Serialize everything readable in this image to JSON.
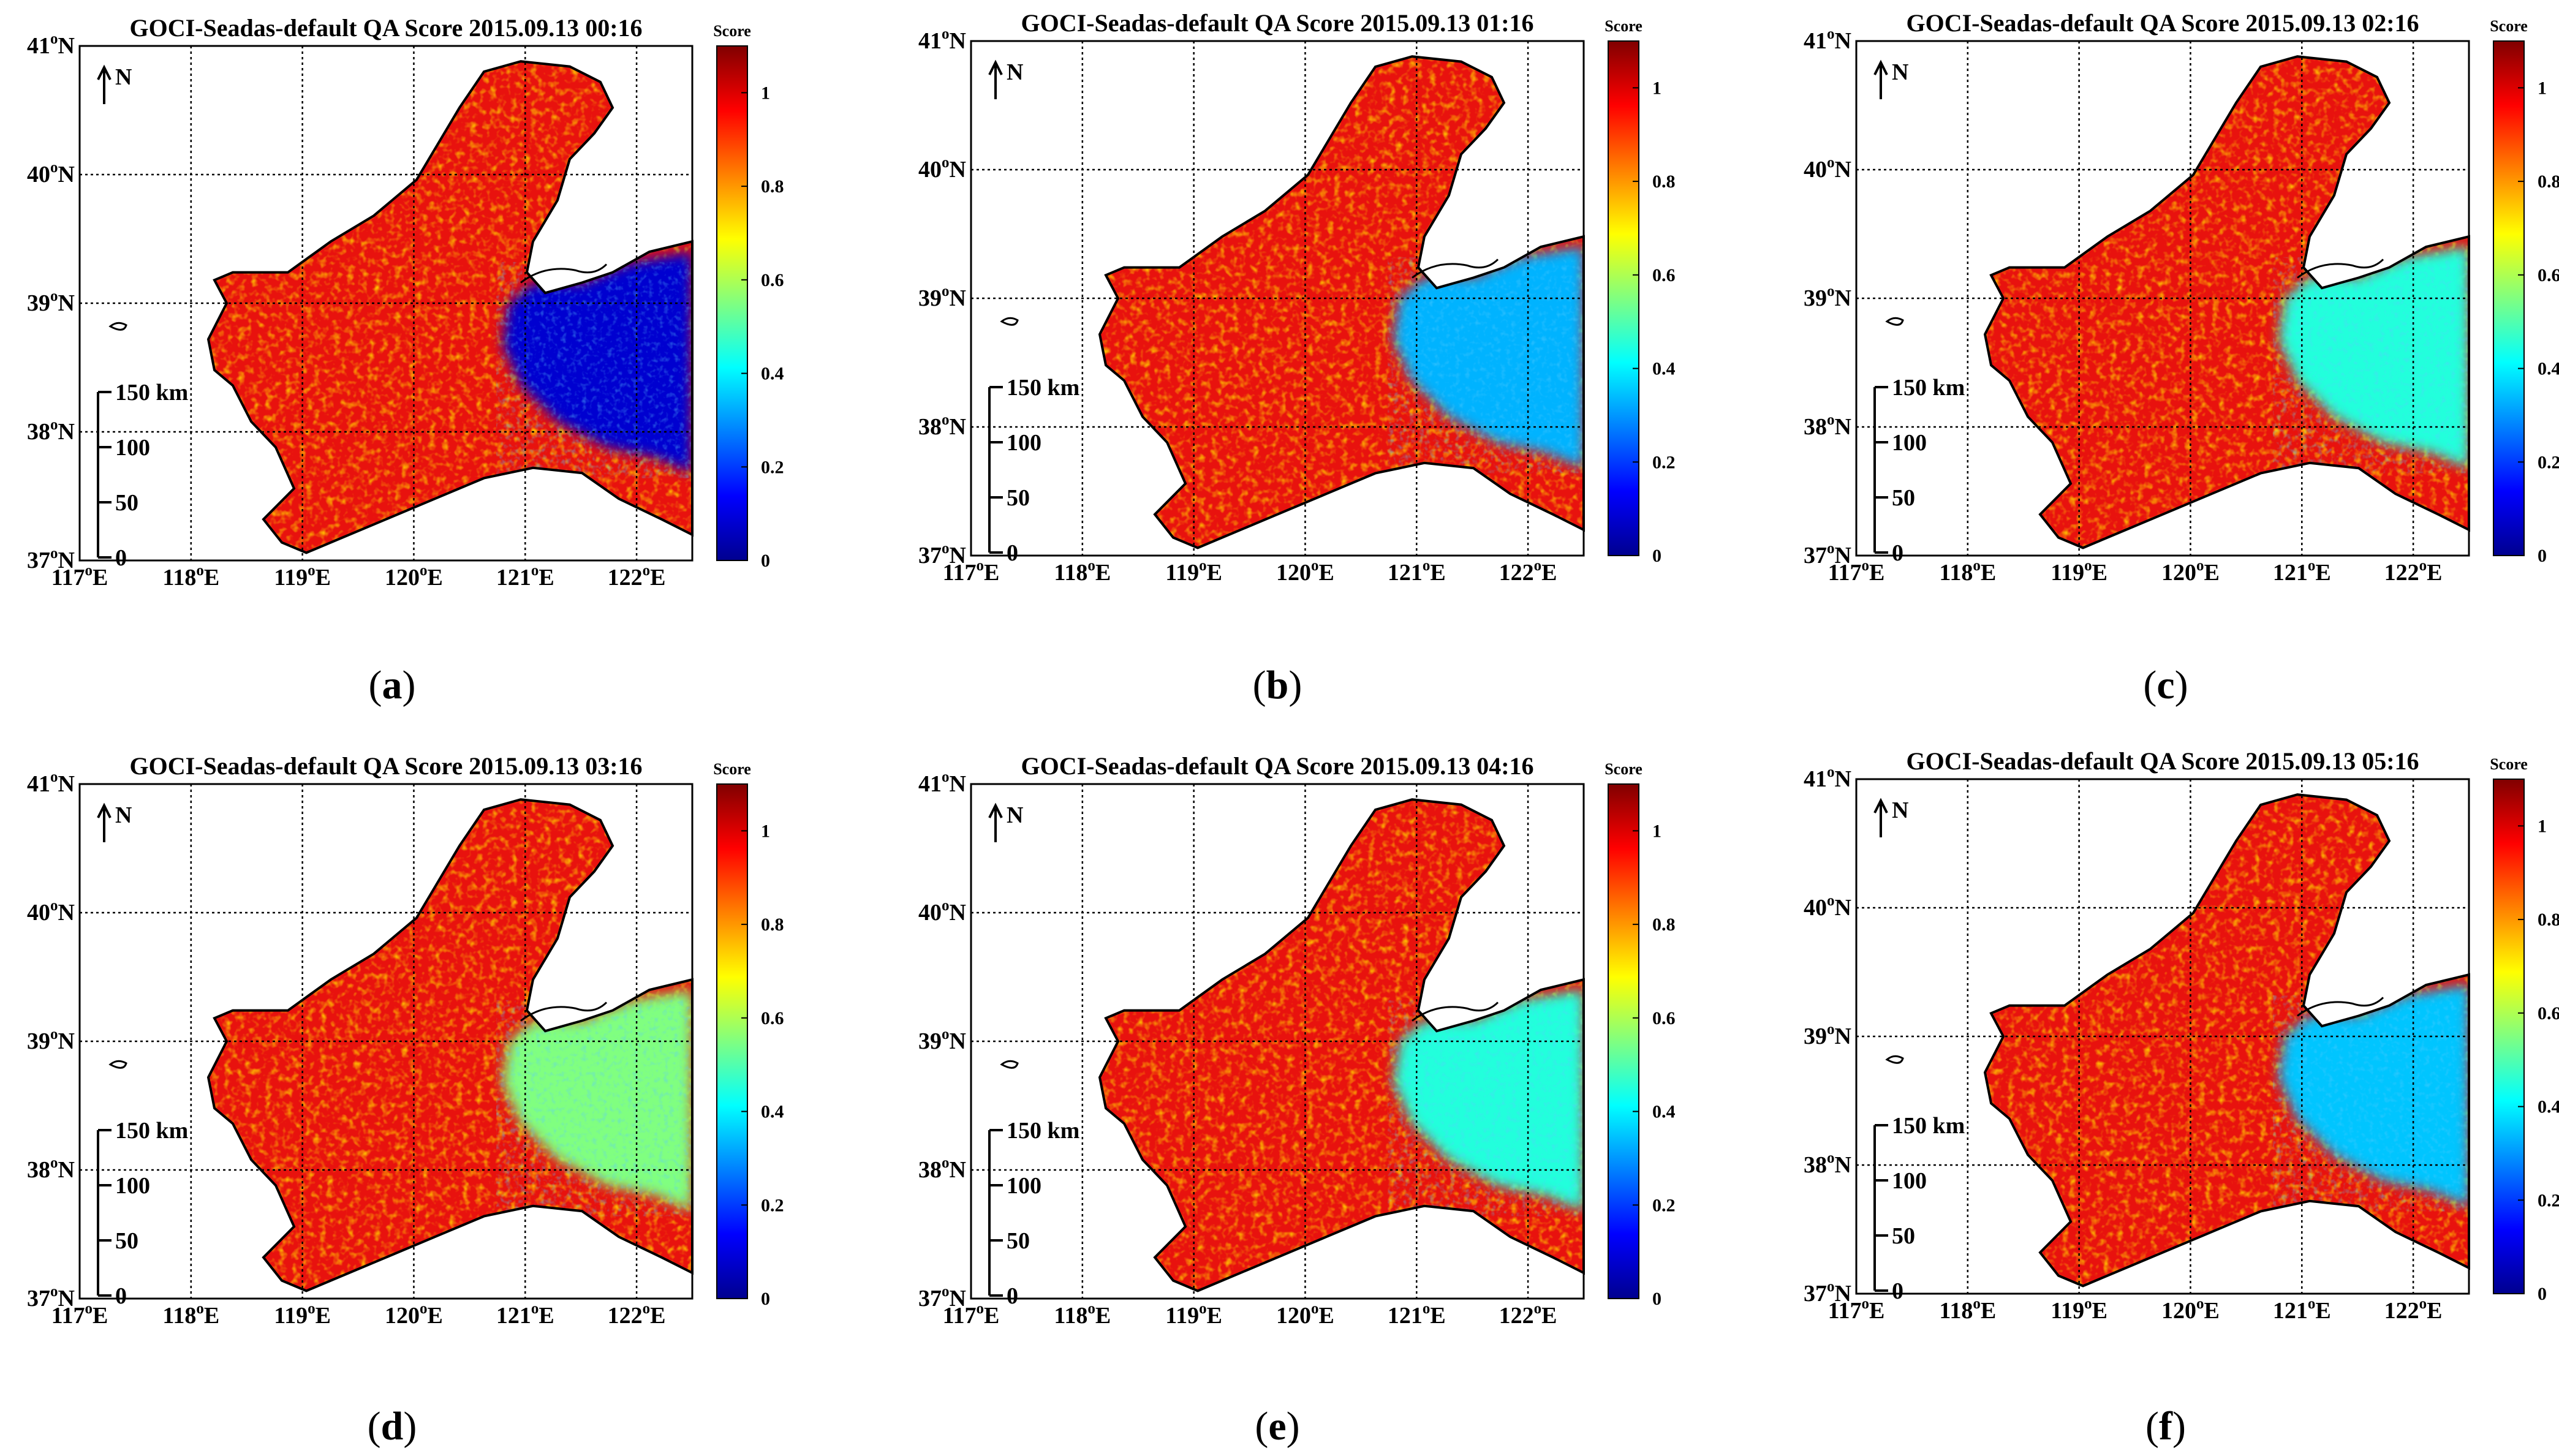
{
  "figure": {
    "panels": [
      {
        "caption": "a",
        "title": "GOCI-Seadas-default QA Score 2015.09.13 00:16",
        "east_low_score": 0.08
      },
      {
        "caption": "b",
        "title": "GOCI-Seadas-default QA Score 2015.09.13 01:16",
        "east_low_score": 0.33
      },
      {
        "caption": "c",
        "title": "GOCI-Seadas-default QA Score 2015.09.13 02:16",
        "east_low_score": 0.45
      },
      {
        "caption": "d",
        "title": "GOCI-Seadas-default QA Score 2015.09.13 03:16",
        "east_low_score": 0.55
      },
      {
        "caption": "e",
        "title": "GOCI-Seadas-default QA Score 2015.09.13 04:16",
        "east_low_score": 0.45
      },
      {
        "caption": "f",
        "title": "GOCI-Seadas-default QA Score 2015.09.13 05:16",
        "east_low_score": 0.35
      }
    ],
    "lat_ticks": [
      {
        "deg": "41",
        "hem": "N"
      },
      {
        "deg": "40",
        "hem": "N"
      },
      {
        "deg": "39",
        "hem": "N"
      },
      {
        "deg": "38",
        "hem": "N"
      },
      {
        "deg": "37",
        "hem": "N"
      }
    ],
    "lon_ticks": [
      {
        "deg": "117",
        "hem": "E"
      },
      {
        "deg": "118",
        "hem": "E"
      },
      {
        "deg": "119",
        "hem": "E"
      },
      {
        "deg": "120",
        "hem": "E"
      },
      {
        "deg": "121",
        "hem": "E"
      },
      {
        "deg": "122",
        "hem": "E"
      }
    ],
    "degree_symbol": "o",
    "north_arrow_label": "N",
    "scale_bar": {
      "labels": [
        "150 km",
        "100",
        "50",
        "0"
      ]
    },
    "colorbar": {
      "title": "Score",
      "ticks": [
        "1",
        "0.8",
        "0.6",
        "0.4",
        "0.2",
        "0"
      ]
    }
  },
  "map_data": {
    "type": "raster-map",
    "region": "Bohai Sea / Northern Yellow Sea",
    "lon_range": [
      117,
      122.5
    ],
    "lat_range": [
      37,
      41
    ],
    "variable": "QA Score",
    "value_range": [
      0,
      1.1
    ]
  },
  "colors": {
    "high": "#e8120e",
    "mid": "#f7a400",
    "low": "#0a1fb5"
  }
}
